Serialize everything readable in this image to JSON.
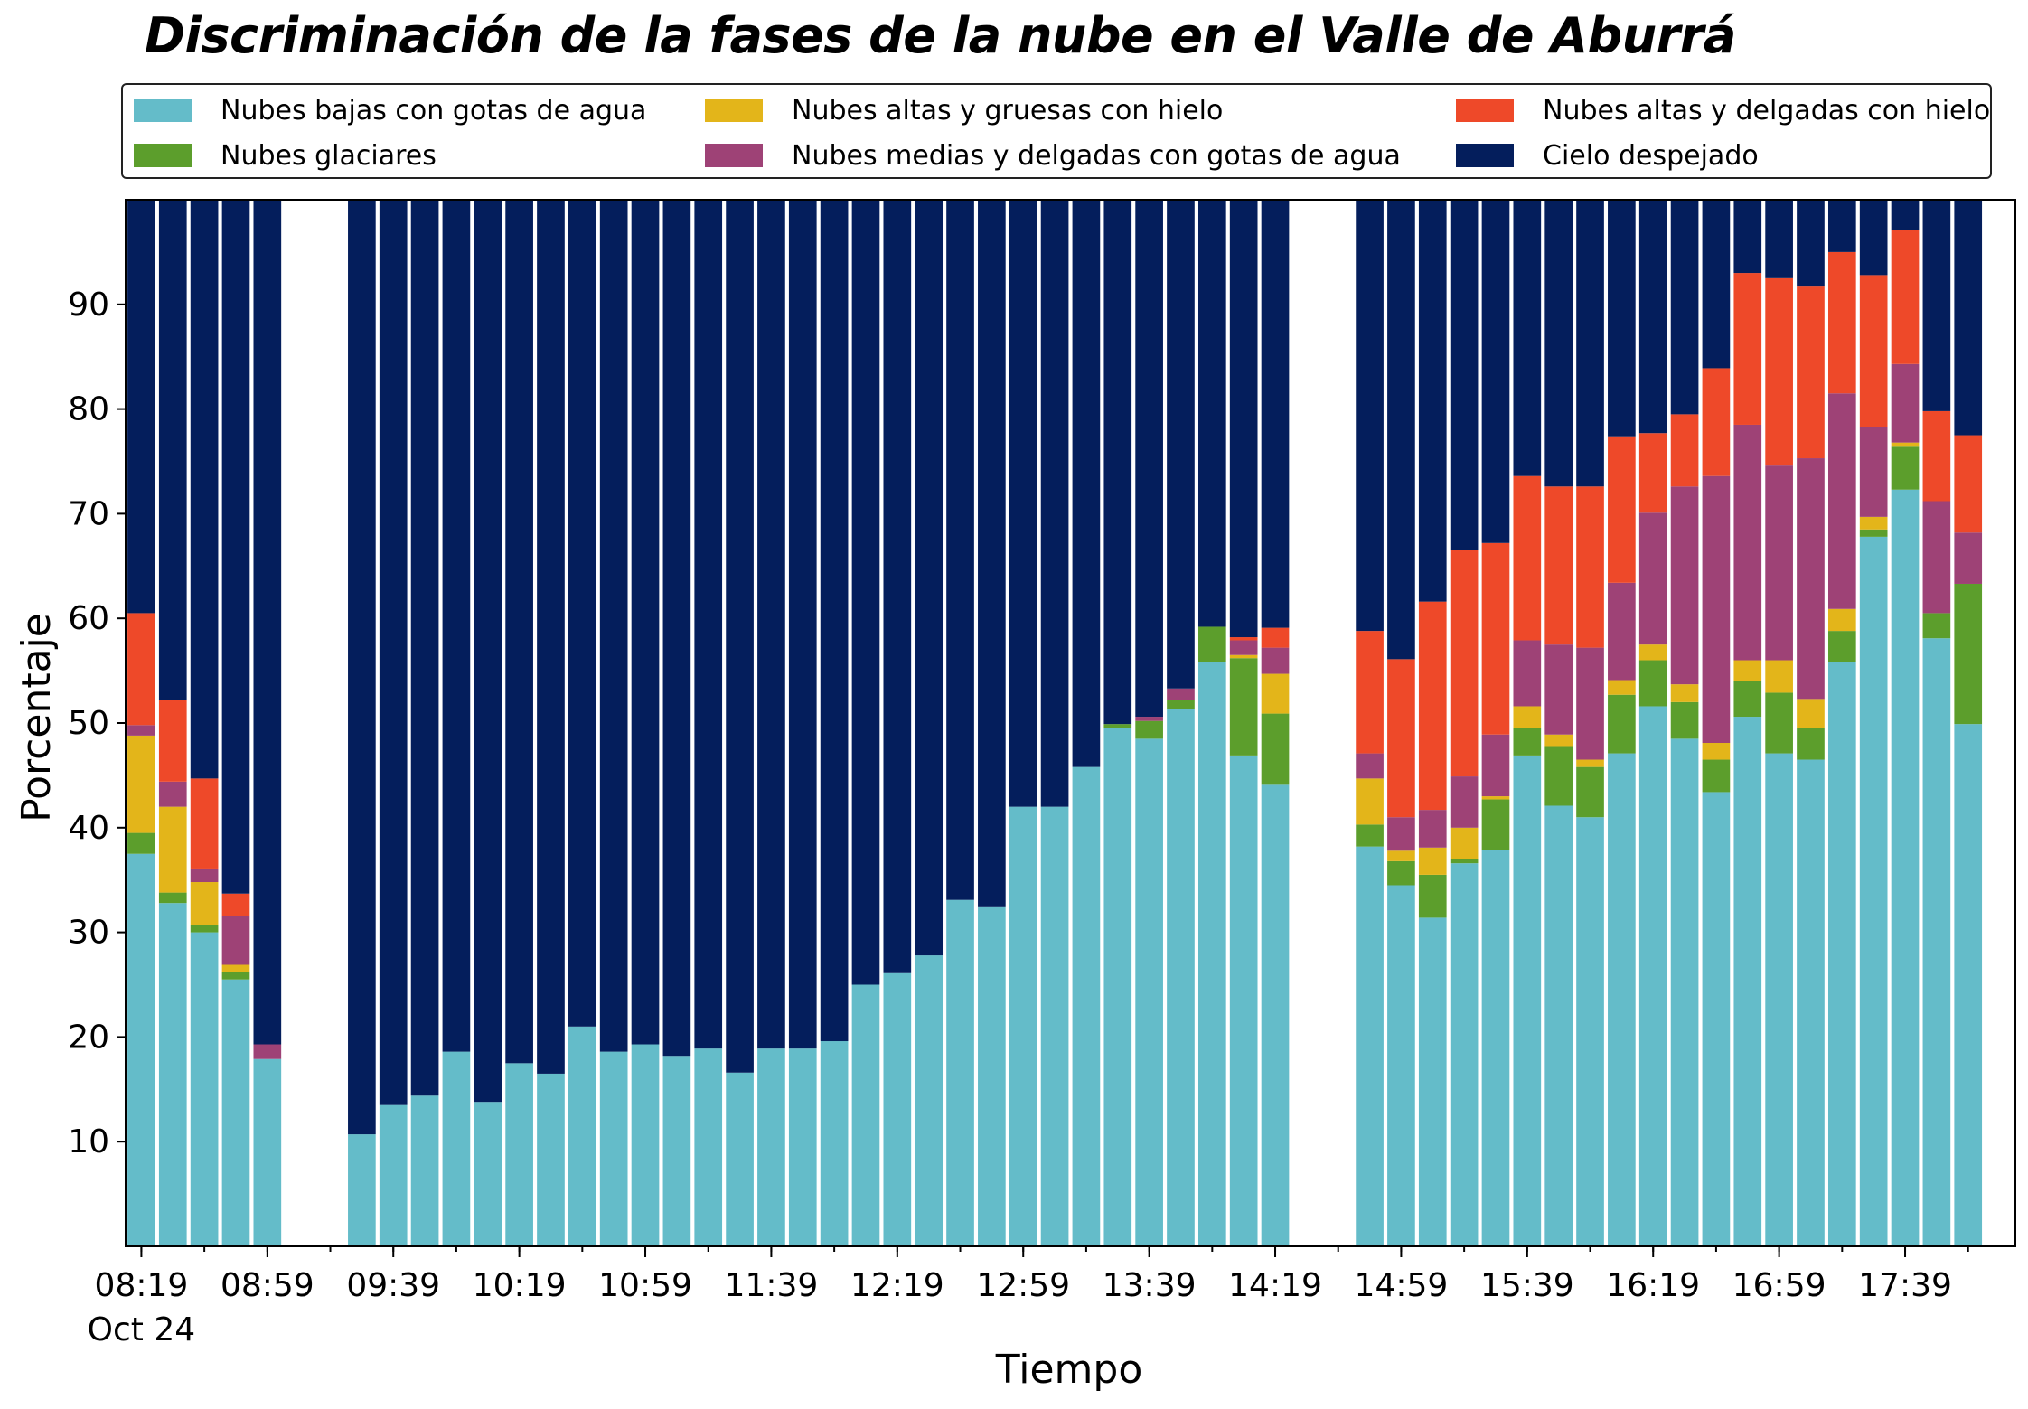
{
  "chart_data": {
    "type": "bar",
    "stacked": true,
    "title": "Discriminación de la fases de la nube en el Valle de Aburrá",
    "xlabel": "Tiempo",
    "ylabel": "Porcentaje",
    "ylim": [
      0,
      100
    ],
    "yticks": [
      10,
      20,
      30,
      40,
      50,
      60,
      70,
      80,
      90
    ],
    "legend_position": "top",
    "grid": false,
    "x_unit_minutes": 10,
    "x_start": "08:19",
    "x_range": [
      -0.5,
      59.5
    ],
    "xticks": [
      {
        "index": 0,
        "label": "08:19",
        "sublabel": "Oct 24"
      },
      {
        "index": 4,
        "label": "08:59"
      },
      {
        "index": 8,
        "label": "09:39"
      },
      {
        "index": 12,
        "label": "10:19"
      },
      {
        "index": 16,
        "label": "10:59"
      },
      {
        "index": 20,
        "label": "11:39"
      },
      {
        "index": 24,
        "label": "12:19"
      },
      {
        "index": 28,
        "label": "12:59"
      },
      {
        "index": 32,
        "label": "13:39"
      },
      {
        "index": 36,
        "label": "14:19"
      },
      {
        "index": 40,
        "label": "14:59"
      },
      {
        "index": 44,
        "label": "15:39"
      },
      {
        "index": 48,
        "label": "16:19"
      },
      {
        "index": 52,
        "label": "16:59"
      },
      {
        "index": 56,
        "label": "17:39"
      }
    ],
    "series": [
      {
        "name": "Nubes bajas con gotas de agua",
        "color": "#64BCC9"
      },
      {
        "name": "Nubes glaciares",
        "color": "#5C9E2C"
      },
      {
        "name": "Nubes altas y gruesas con hielo",
        "color": "#E3B51A"
      },
      {
        "name": "Nubes medias y delgadas con gotas de agua",
        "color": "#9E4276"
      },
      {
        "name": "Nubes altas y delgadas con hielo",
        "color": "#EE4929"
      },
      {
        "name": "Cielo despejado",
        "color": "#041E5C"
      }
    ],
    "bars": [
      {
        "time": "08:19",
        "values": [
          37.5,
          2,
          9.3,
          1,
          10.7,
          39.5
        ]
      },
      {
        "time": "08:29",
        "values": [
          32.8,
          1,
          8.2,
          2.4,
          7.8,
          47.8
        ]
      },
      {
        "time": "08:39",
        "values": [
          30,
          0.7,
          4.1,
          1.3,
          8.6,
          55.3
        ]
      },
      {
        "time": "08:49",
        "values": [
          25.5,
          0.7,
          0.7,
          4.7,
          2.1,
          66.3
        ]
      },
      {
        "time": "08:59",
        "values": [
          17.9,
          0,
          0,
          1.4,
          0,
          80.7
        ]
      },
      {
        "time": "09:29",
        "values": [
          10.7,
          0,
          0,
          0,
          0,
          89.3
        ]
      },
      {
        "time": "09:39",
        "values": [
          13.5,
          0,
          0,
          0,
          0,
          86.5
        ]
      },
      {
        "time": "09:49",
        "values": [
          14.4,
          0,
          0,
          0,
          0,
          85.6
        ]
      },
      {
        "time": "09:59",
        "values": [
          18.6,
          0,
          0,
          0,
          0,
          81.4
        ]
      },
      {
        "time": "10:09",
        "values": [
          13.8,
          0,
          0,
          0,
          0,
          86.2
        ]
      },
      {
        "time": "10:19",
        "values": [
          17.5,
          0,
          0,
          0,
          0,
          82.5
        ]
      },
      {
        "time": "10:29",
        "values": [
          16.5,
          0,
          0,
          0,
          0,
          83.5
        ]
      },
      {
        "time": "10:39",
        "values": [
          21,
          0,
          0,
          0,
          0,
          79
        ]
      },
      {
        "time": "10:49",
        "values": [
          18.6,
          0,
          0,
          0,
          0,
          81.4
        ]
      },
      {
        "time": "10:59",
        "values": [
          19.3,
          0,
          0,
          0,
          0,
          80.7
        ]
      },
      {
        "time": "11:09",
        "values": [
          18.2,
          0,
          0,
          0,
          0,
          81.8
        ]
      },
      {
        "time": "11:19",
        "values": [
          18.9,
          0,
          0,
          0,
          0,
          81.1
        ]
      },
      {
        "time": "11:29",
        "values": [
          16.6,
          0,
          0,
          0,
          0,
          83.4
        ]
      },
      {
        "time": "11:39",
        "values": [
          18.9,
          0,
          0,
          0,
          0,
          81.1
        ]
      },
      {
        "time": "11:49",
        "values": [
          18.9,
          0,
          0,
          0,
          0,
          81.1
        ]
      },
      {
        "time": "11:59",
        "values": [
          19.6,
          0,
          0,
          0,
          0,
          80.4
        ]
      },
      {
        "time": "12:09",
        "values": [
          25,
          0,
          0,
          0,
          0,
          75
        ]
      },
      {
        "time": "12:19",
        "values": [
          26.1,
          0,
          0,
          0,
          0,
          73.9
        ]
      },
      {
        "time": "12:29",
        "values": [
          27.8,
          0,
          0,
          0,
          0,
          72.2
        ]
      },
      {
        "time": "12:39",
        "values": [
          33.1,
          0,
          0,
          0,
          0,
          66.9
        ]
      },
      {
        "time": "12:49",
        "values": [
          32.4,
          0,
          0,
          0,
          0,
          67.6
        ]
      },
      {
        "time": "12:59",
        "values": [
          42,
          0,
          0,
          0,
          0,
          58
        ]
      },
      {
        "time": "13:09",
        "values": [
          42,
          0,
          0,
          0,
          0,
          58
        ]
      },
      {
        "time": "13:19",
        "values": [
          45.8,
          0,
          0,
          0,
          0,
          54.2
        ]
      },
      {
        "time": "13:29",
        "values": [
          49.5,
          0.4,
          0,
          0,
          0,
          50.1
        ]
      },
      {
        "time": "13:39",
        "values": [
          48.5,
          1.7,
          0,
          0.4,
          0,
          49.4
        ]
      },
      {
        "time": "13:49",
        "values": [
          51.3,
          0.9,
          0,
          1.1,
          0,
          46.7
        ]
      },
      {
        "time": "13:59",
        "values": [
          55.8,
          3.4,
          0,
          0,
          0,
          40.8
        ]
      },
      {
        "time": "14:09",
        "values": [
          46.9,
          9.3,
          0.3,
          1.4,
          0.3,
          41.8
        ]
      },
      {
        "time": "14:19",
        "values": [
          44.1,
          6.8,
          3.8,
          2.5,
          1.9,
          40.9
        ]
      },
      {
        "time": "14:49",
        "values": [
          38.2,
          2.1,
          4.4,
          2.4,
          11.7,
          41.2
        ]
      },
      {
        "time": "14:59",
        "values": [
          34.5,
          2.3,
          1,
          3.2,
          15.1,
          43.9
        ]
      },
      {
        "time": "15:09",
        "values": [
          31.4,
          4.1,
          2.6,
          3.6,
          19.9,
          38.4
        ]
      },
      {
        "time": "15:19",
        "values": [
          36.6,
          0.4,
          3,
          4.9,
          21.6,
          33.5
        ]
      },
      {
        "time": "15:29",
        "values": [
          37.9,
          4.8,
          0.3,
          5.9,
          18.3,
          32.8
        ]
      },
      {
        "time": "15:39",
        "values": [
          46.9,
          2.6,
          2.1,
          6.3,
          15.7,
          26.4
        ]
      },
      {
        "time": "15:49",
        "values": [
          42.1,
          5.7,
          1.1,
          8.6,
          15.1,
          27.4
        ]
      },
      {
        "time": "15:59",
        "values": [
          41,
          4.8,
          0.7,
          10.7,
          15.4,
          27.4
        ]
      },
      {
        "time": "16:09",
        "values": [
          47.1,
          5.6,
          1.4,
          9.3,
          14,
          22.6
        ]
      },
      {
        "time": "16:19",
        "values": [
          51.6,
          4.4,
          1.5,
          12.6,
          7.6,
          22.3
        ]
      },
      {
        "time": "16:29",
        "values": [
          48.5,
          3.5,
          1.7,
          18.9,
          6.9,
          20.5
        ]
      },
      {
        "time": "16:39",
        "values": [
          43.4,
          3.1,
          1.6,
          25.5,
          10.3,
          16.1
        ]
      },
      {
        "time": "16:49",
        "values": [
          50.6,
          3.4,
          2,
          22.5,
          14.5,
          7
        ]
      },
      {
        "time": "16:59",
        "values": [
          47.1,
          5.8,
          3.1,
          18.6,
          17.9,
          7.5
        ]
      },
      {
        "time": "17:09",
        "values": [
          46.5,
          3,
          2.8,
          23,
          16.4,
          8.3
        ]
      },
      {
        "time": "17:19",
        "values": [
          55.8,
          3,
          2.1,
          20.6,
          13.5,
          5
        ]
      },
      {
        "time": "17:29",
        "values": [
          67.8,
          0.7,
          1.2,
          8.6,
          14.5,
          7.2
        ]
      },
      {
        "time": "17:39",
        "values": [
          72.3,
          4.1,
          0.4,
          7.5,
          12.8,
          2.9
        ]
      },
      {
        "time": "17:49",
        "values": [
          58.1,
          2.4,
          0,
          10.7,
          8.6,
          20.2
        ]
      },
      {
        "time": "17:59",
        "values": [
          49.9,
          13.4,
          0,
          4.9,
          9.3,
          22.5
        ]
      }
    ],
    "bar_positions": [
      0,
      1,
      2,
      3,
      4,
      7,
      8,
      9,
      10,
      11,
      12,
      13,
      14,
      15,
      16,
      17,
      18,
      19,
      20,
      21,
      22,
      23,
      24,
      25,
      26,
      27,
      28,
      29,
      30,
      31,
      32,
      33,
      34,
      35,
      36,
      39,
      40,
      41,
      42,
      43,
      44,
      45,
      46,
      47,
      48,
      49,
      50,
      51,
      52,
      53,
      54,
      55,
      56,
      57,
      58
    ]
  }
}
